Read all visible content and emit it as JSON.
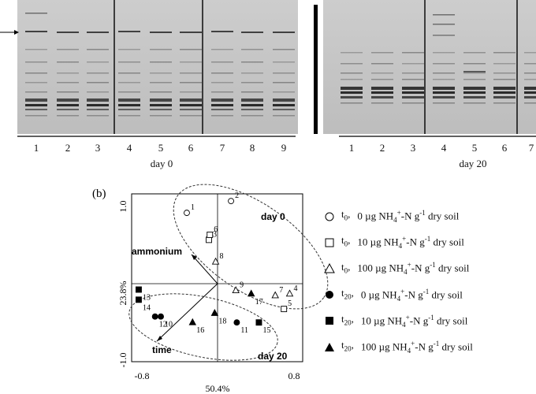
{
  "gel": {
    "panel_left": {
      "lanes": [
        "1",
        "2",
        "3",
        "4",
        "5",
        "6",
        "7",
        "8",
        "9"
      ],
      "caption": "day 0"
    },
    "panel_right": {
      "lanes": [
        "1",
        "2",
        "3",
        "4",
        "5",
        "6",
        "7"
      ],
      "caption": "day 20"
    }
  },
  "pca": {
    "panel_label": "(b)",
    "x_axis_label": "50.4%",
    "y_axis_label": "23.8%",
    "x_ticks": [
      "-0.8",
      "0.8"
    ],
    "y_ticks": [
      "1.0",
      "-1.0"
    ],
    "group_labels": [
      "day 0",
      "day 20"
    ],
    "vector_labels": [
      "ammonium",
      "time"
    ],
    "samples": [
      {
        "id": "1",
        "group": "t0_0",
        "x": -0.32,
        "y": 0.84
      },
      {
        "id": "2",
        "group": "t0_0",
        "x": 0.14,
        "y": 0.98
      },
      {
        "id": "3",
        "group": "t0_10",
        "x": -0.09,
        "y": 0.52
      },
      {
        "id": "4",
        "group": "t0_100",
        "x": 0.75,
        "y": -0.12
      },
      {
        "id": "5",
        "group": "t0_10",
        "x": 0.69,
        "y": -0.3
      },
      {
        "id": "6",
        "group": "t0_10",
        "x": -0.08,
        "y": 0.58
      },
      {
        "id": "7",
        "group": "t0_100",
        "x": 0.6,
        "y": -0.14
      },
      {
        "id": "8",
        "group": "t0_100",
        "x": -0.02,
        "y": 0.26
      },
      {
        "id": "9",
        "group": "t0_100",
        "x": 0.19,
        "y": -0.08
      },
      {
        "id": "10",
        "group": "t20_0",
        "x": -0.59,
        "y": -0.39
      },
      {
        "id": "11",
        "group": "t20_0",
        "x": 0.2,
        "y": -0.46
      },
      {
        "id": "12",
        "group": "t20_0",
        "x": -0.65,
        "y": -0.39
      },
      {
        "id": "13",
        "group": "t20_10",
        "x": -0.82,
        "y": -0.07
      },
      {
        "id": "14",
        "group": "t20_10",
        "x": -0.82,
        "y": -0.19
      },
      {
        "id": "15",
        "group": "t20_10",
        "x": 0.43,
        "y": -0.46
      },
      {
        "id": "16",
        "group": "t20_100",
        "x": -0.26,
        "y": -0.46
      },
      {
        "id": "17",
        "group": "t20_100",
        "x": 0.35,
        "y": -0.12
      },
      {
        "id": "18",
        "group": "t20_100",
        "x": -0.03,
        "y": -0.35
      }
    ]
  },
  "legend": [
    {
      "symbol": "open-circle-icon",
      "time_base": "t",
      "time_sub": "0",
      "dose_prefix": "0 µg NH",
      "dose_suffix": "-N g",
      "dose_end": " dry soil"
    },
    {
      "symbol": "open-square-icon",
      "time_base": "t",
      "time_sub": "0",
      "dose_prefix": "10 µg NH",
      "dose_suffix": "-N g",
      "dose_end": " dry soil"
    },
    {
      "symbol": "open-triangle-icon",
      "time_base": "t",
      "time_sub": "0",
      "dose_prefix": "100 µg NH",
      "dose_suffix": "-N g",
      "dose_end": " dry soil"
    },
    {
      "symbol": "filled-circle-icon",
      "time_base": "t",
      "time_sub": "20",
      "dose_prefix": "0 µg NH",
      "dose_suffix": "-N g",
      "dose_end": " dry soil"
    },
    {
      "symbol": "filled-square-icon",
      "time_base": "t",
      "time_sub": "20",
      "dose_prefix": "10 µg NH",
      "dose_suffix": "-N g",
      "dose_end": " dry soil"
    },
    {
      "symbol": "filled-triangle-icon",
      "time_base": "t",
      "time_sub": "20",
      "dose_prefix": "100 µg NH",
      "dose_suffix": "-N g",
      "dose_end": " dry soil"
    }
  ],
  "legend_sup_nh": "4",
  "legend_sup_plus": "+",
  "legend_sup_g": "-1",
  "colors": {
    "gel_background": "#c9c9c9",
    "band_dark": "#1a1a1a"
  }
}
